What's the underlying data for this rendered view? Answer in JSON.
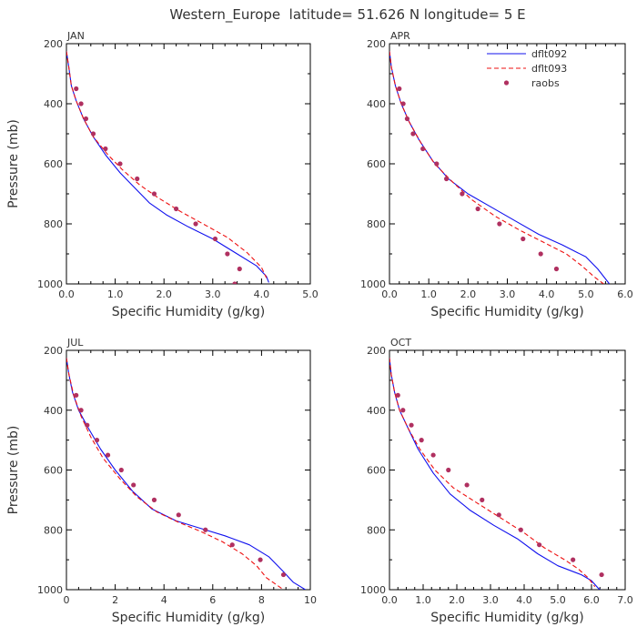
{
  "figure_title": "Western_Europe  latitude= 51.626 N longitude= 5 E",
  "legend": {
    "placement": "top-right of APR panel",
    "entries": [
      {
        "label": "dflt092",
        "style": "solid",
        "color": "#1010ee"
      },
      {
        "label": "dflt093",
        "style": "dashed",
        "color": "#ee1010"
      },
      {
        "label": "raobs",
        "style": "dots",
        "color": "#b03060"
      }
    ]
  },
  "chart_data": [
    {
      "type": "line",
      "panel": "JAN",
      "title": "JAN",
      "xlabel": "Specific Humidity (g/kg)",
      "ylabel": "Pressure (mb)",
      "xlim": [
        0,
        5
      ],
      "xticks": [
        "0.0",
        "1.0",
        "2.0",
        "3.0",
        "4.0",
        "5.0"
      ],
      "ylim": [
        200,
        1000
      ],
      "yticks": [
        "200",
        "400",
        "600",
        "800",
        "1000"
      ],
      "y_inverted": true,
      "series": [
        {
          "name": "dflt092",
          "points": [
            [
              0.0,
              225
            ],
            [
              0.05,
              280
            ],
            [
              0.1,
              340
            ],
            [
              0.2,
              390
            ],
            [
              0.35,
              450
            ],
            [
              0.55,
              510
            ],
            [
              0.8,
              570
            ],
            [
              1.1,
              630
            ],
            [
              1.4,
              680
            ],
            [
              1.7,
              730
            ],
            [
              2.05,
              770
            ],
            [
              2.5,
              810
            ],
            [
              3.0,
              850
            ],
            [
              3.5,
              900
            ],
            [
              3.9,
              940
            ],
            [
              4.1,
              975
            ],
            [
              4.15,
              995
            ]
          ]
        },
        {
          "name": "dflt093",
          "points": [
            [
              0.0,
              225
            ],
            [
              0.05,
              280
            ],
            [
              0.1,
              340
            ],
            [
              0.2,
              390
            ],
            [
              0.35,
              450
            ],
            [
              0.55,
              510
            ],
            [
              0.85,
              570
            ],
            [
              1.15,
              620
            ],
            [
              1.5,
              670
            ],
            [
              1.9,
              715
            ],
            [
              2.35,
              760
            ],
            [
              2.8,
              800
            ],
            [
              3.3,
              845
            ],
            [
              3.7,
              895
            ],
            [
              4.0,
              945
            ],
            [
              4.1,
              980
            ]
          ]
        },
        {
          "name": "raobs",
          "points": [
            [
              0.2,
              350
            ],
            [
              0.3,
              400
            ],
            [
              0.4,
              450
            ],
            [
              0.55,
              500
            ],
            [
              0.8,
              550
            ],
            [
              1.1,
              600
            ],
            [
              1.45,
              650
            ],
            [
              1.8,
              700
            ],
            [
              2.25,
              750
            ],
            [
              2.65,
              800
            ],
            [
              3.05,
              850
            ],
            [
              3.3,
              900
            ],
            [
              3.55,
              950
            ],
            [
              3.45,
              1000
            ]
          ]
        }
      ]
    },
    {
      "type": "line",
      "panel": "APR",
      "title": "APR",
      "xlabel": "Specific Humidity (g/kg)",
      "ylabel": "",
      "xlim": [
        0,
        6
      ],
      "xticks": [
        "0.0",
        "1.0",
        "2.0",
        "3.0",
        "4.0",
        "5.0",
        "6.0"
      ],
      "ylim": [
        200,
        1000
      ],
      "yticks": [
        "200",
        "400",
        "600",
        "800",
        "1000"
      ],
      "y_inverted": true,
      "series": [
        {
          "name": "dflt092",
          "points": [
            [
              0.0,
              225
            ],
            [
              0.05,
              280
            ],
            [
              0.15,
              340
            ],
            [
              0.3,
              400
            ],
            [
              0.5,
              460
            ],
            [
              0.75,
              520
            ],
            [
              1.1,
              590
            ],
            [
              1.5,
              650
            ],
            [
              2.0,
              700
            ],
            [
              2.6,
              745
            ],
            [
              3.2,
              790
            ],
            [
              3.8,
              835
            ],
            [
              4.4,
              870
            ],
            [
              5.0,
              910
            ],
            [
              5.3,
              950
            ],
            [
              5.6,
              1000
            ]
          ]
        },
        {
          "name": "dflt093",
          "points": [
            [
              0.0,
              225
            ],
            [
              0.05,
              280
            ],
            [
              0.15,
              340
            ],
            [
              0.3,
              400
            ],
            [
              0.5,
              460
            ],
            [
              0.8,
              530
            ],
            [
              1.15,
              600
            ],
            [
              1.6,
              660
            ],
            [
              2.1,
              720
            ],
            [
              2.7,
              775
            ],
            [
              3.3,
              820
            ],
            [
              3.9,
              860
            ],
            [
              4.5,
              900
            ],
            [
              4.9,
              940
            ],
            [
              5.2,
              975
            ],
            [
              5.45,
              1000
            ]
          ]
        },
        {
          "name": "raobs",
          "points": [
            [
              0.25,
              350
            ],
            [
              0.35,
              400
            ],
            [
              0.45,
              450
            ],
            [
              0.6,
              500
            ],
            [
              0.85,
              550
            ],
            [
              1.2,
              600
            ],
            [
              1.45,
              650
            ],
            [
              1.85,
              700
            ],
            [
              2.25,
              750
            ],
            [
              2.8,
              800
            ],
            [
              3.4,
              850
            ],
            [
              3.85,
              900
            ],
            [
              4.25,
              950
            ]
          ]
        }
      ]
    },
    {
      "type": "line",
      "panel": "JUL",
      "title": "JUL",
      "xlabel": "Specific Humidity (g/kg)",
      "ylabel": "Pressure (mb)",
      "xlim": [
        0,
        10
      ],
      "xticks": [
        "0",
        "2",
        "4",
        "6",
        "8",
        "10"
      ],
      "ylim": [
        200,
        1000
      ],
      "yticks": [
        "200",
        "400",
        "600",
        "800",
        "1000"
      ],
      "y_inverted": true,
      "series": [
        {
          "name": "dflt092",
          "points": [
            [
              0.0,
              225
            ],
            [
              0.1,
              280
            ],
            [
              0.25,
              340
            ],
            [
              0.5,
              400
            ],
            [
              0.9,
              460
            ],
            [
              1.4,
              530
            ],
            [
              2.0,
              600
            ],
            [
              2.7,
              670
            ],
            [
              3.5,
              730
            ],
            [
              4.5,
              770
            ],
            [
              5.5,
              795
            ],
            [
              6.5,
              820
            ],
            [
              7.5,
              850
            ],
            [
              8.3,
              890
            ],
            [
              8.9,
              940
            ],
            [
              9.3,
              975
            ],
            [
              9.8,
              1000
            ]
          ]
        },
        {
          "name": "dflt093",
          "points": [
            [
              0.0,
              225
            ],
            [
              0.1,
              280
            ],
            [
              0.3,
              350
            ],
            [
              0.6,
              420
            ],
            [
              1.0,
              490
            ],
            [
              1.5,
              560
            ],
            [
              2.2,
              630
            ],
            [
              2.9,
              690
            ],
            [
              3.7,
              740
            ],
            [
              4.6,
              775
            ],
            [
              5.5,
              805
            ],
            [
              6.4,
              840
            ],
            [
              7.2,
              880
            ],
            [
              7.8,
              920
            ],
            [
              8.2,
              960
            ],
            [
              8.9,
              1000
            ]
          ]
        },
        {
          "name": "raobs",
          "points": [
            [
              0.4,
              350
            ],
            [
              0.6,
              400
            ],
            [
              0.85,
              450
            ],
            [
              1.25,
              500
            ],
            [
              1.7,
              550
            ],
            [
              2.25,
              600
            ],
            [
              2.75,
              650
            ],
            [
              3.6,
              700
            ],
            [
              4.6,
              750
            ],
            [
              5.7,
              800
            ],
            [
              6.8,
              850
            ],
            [
              7.95,
              900
            ],
            [
              8.9,
              950
            ]
          ]
        }
      ]
    },
    {
      "type": "line",
      "panel": "OCT",
      "title": "OCT",
      "xlabel": "Specific Humidity (g/kg)",
      "ylabel": "",
      "xlim": [
        0,
        7
      ],
      "xticks": [
        "0.0",
        "1.0",
        "2.0",
        "3.0",
        "4.0",
        "5.0",
        "6.0",
        "7.0"
      ],
      "ylim": [
        200,
        1000
      ],
      "yticks": [
        "200",
        "400",
        "600",
        "800",
        "1000"
      ],
      "y_inverted": true,
      "series": [
        {
          "name": "dflt092",
          "points": [
            [
              0.0,
              225
            ],
            [
              0.05,
              280
            ],
            [
              0.15,
              340
            ],
            [
              0.3,
              400
            ],
            [
              0.55,
              460
            ],
            [
              0.85,
              530
            ],
            [
              1.3,
              610
            ],
            [
              1.8,
              680
            ],
            [
              2.4,
              735
            ],
            [
              3.1,
              785
            ],
            [
              3.8,
              830
            ],
            [
              4.4,
              880
            ],
            [
              5.0,
              920
            ],
            [
              5.7,
              950
            ],
            [
              6.0,
              970
            ],
            [
              6.2,
              995
            ],
            [
              6.35,
              1010
            ]
          ]
        },
        {
          "name": "dflt093",
          "points": [
            [
              0.0,
              225
            ],
            [
              0.05,
              280
            ],
            [
              0.15,
              340
            ],
            [
              0.3,
              400
            ],
            [
              0.55,
              460
            ],
            [
              0.9,
              530
            ],
            [
              1.35,
              600
            ],
            [
              1.9,
              660
            ],
            [
              2.6,
              710
            ],
            [
              3.3,
              760
            ],
            [
              4.0,
              810
            ],
            [
              4.6,
              860
            ],
            [
              5.2,
              900
            ],
            [
              5.6,
              930
            ],
            [
              5.9,
              960
            ],
            [
              6.1,
              990
            ]
          ]
        },
        {
          "name": "raobs",
          "points": [
            [
              0.25,
              350
            ],
            [
              0.4,
              400
            ],
            [
              0.65,
              450
            ],
            [
              0.95,
              500
            ],
            [
              1.3,
              550
            ],
            [
              1.75,
              600
            ],
            [
              2.3,
              650
            ],
            [
              2.75,
              700
            ],
            [
              3.25,
              750
            ],
            [
              3.9,
              800
            ],
            [
              4.45,
              850
            ],
            [
              5.45,
              900
            ],
            [
              6.3,
              950
            ]
          ]
        }
      ]
    }
  ]
}
